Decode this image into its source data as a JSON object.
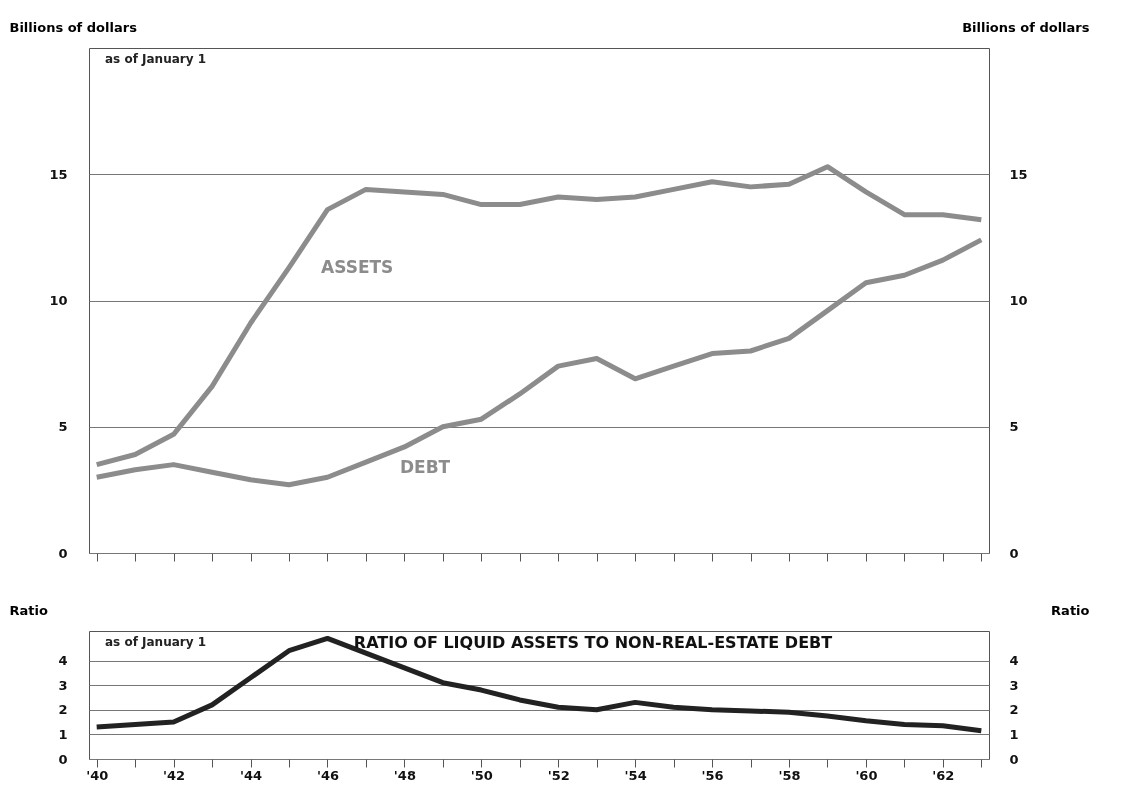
{
  "chart_data": [
    {
      "type": "line",
      "ylabel": "Billions of dollars",
      "y2label": "Billions of dollars",
      "annotations": [
        "as of January 1"
      ],
      "x": [
        1940,
        1941,
        1942,
        1943,
        1944,
        1945,
        1946,
        1947,
        1948,
        1949,
        1950,
        1951,
        1952,
        1953,
        1954,
        1955,
        1956,
        1957,
        1958,
        1959,
        1960,
        1961,
        1962,
        1963
      ],
      "series": [
        {
          "name": "ASSETS",
          "color": "#8c8c8c",
          "values": [
            3.5,
            3.9,
            4.7,
            6.6,
            9.1,
            11.3,
            13.6,
            14.4,
            14.3,
            14.2,
            13.8,
            13.8,
            14.1,
            14.0,
            14.1,
            14.4,
            14.7,
            14.5,
            14.6,
            15.3,
            14.3,
            13.4,
            13.4,
            13.2
          ]
        },
        {
          "name": "DEBT",
          "color": "#8c8c8c",
          "values": [
            3.0,
            3.3,
            3.5,
            3.2,
            2.9,
            2.7,
            3.0,
            3.6,
            4.2,
            5.0,
            5.3,
            6.3,
            7.4,
            7.7,
            6.9,
            7.4,
            7.9,
            8.0,
            8.5,
            9.6,
            10.7,
            11.0,
            11.6,
            12.4
          ]
        }
      ],
      "xlim": [
        1939.8,
        1963.2
      ],
      "xticks": [
        {
          "value": 1940,
          "label": null
        },
        {
          "value": 1941,
          "label": null
        },
        {
          "value": 1942,
          "label": null
        },
        {
          "value": 1943,
          "label": null
        },
        {
          "value": 1944,
          "label": null
        },
        {
          "value": 1945,
          "label": null
        },
        {
          "value": 1946,
          "label": null
        },
        {
          "value": 1947,
          "label": null
        },
        {
          "value": 1948,
          "label": null
        },
        {
          "value": 1949,
          "label": null
        },
        {
          "value": 1950,
          "label": null
        },
        {
          "value": 1951,
          "label": null
        },
        {
          "value": 1952,
          "label": null
        },
        {
          "value": 1953,
          "label": null
        },
        {
          "value": 1954,
          "label": null
        },
        {
          "value": 1955,
          "label": null
        },
        {
          "value": 1956,
          "label": null
        },
        {
          "value": 1957,
          "label": null
        },
        {
          "value": 1958,
          "label": null
        },
        {
          "value": 1959,
          "label": null
        },
        {
          "value": 1960,
          "label": null
        },
        {
          "value": 1961,
          "label": null
        },
        {
          "value": 1962,
          "label": null
        },
        {
          "value": 1963,
          "label": null
        }
      ],
      "ylim": [
        0,
        20
      ],
      "yticks": [
        0,
        5,
        10,
        15
      ],
      "y2lim": [
        0,
        20
      ],
      "y2ticks": [
        0,
        5,
        10,
        15
      ],
      "tick_labels": "y",
      "grid": "y",
      "legend": false,
      "line_style": "solid",
      "marker": "none"
    },
    {
      "type": "line",
      "title": "RATIO OF LIQUID ASSETS TO NON-REAL-ESTATE DEBT",
      "ylabel": "Ratio",
      "y2label": "Ratio",
      "annotations": [
        "as of January 1"
      ],
      "x": [
        1940,
        1941,
        1942,
        1943,
        1944,
        1945,
        1946,
        1947,
        1948,
        1949,
        1950,
        1951,
        1952,
        1953,
        1954,
        1955,
        1956,
        1957,
        1958,
        1959,
        1960,
        1961,
        1962,
        1963
      ],
      "series": [
        {
          "color": "#222222",
          "values": [
            1.3,
            1.4,
            1.5,
            2.2,
            3.3,
            4.4,
            4.9,
            4.3,
            3.7,
            3.1,
            2.8,
            2.4,
            2.1,
            2.0,
            2.3,
            2.1,
            2.0,
            1.95,
            1.9,
            1.75,
            1.55,
            1.4,
            1.35,
            1.15
          ]
        }
      ],
      "xlim": [
        1939.8,
        1963.2
      ],
      "xticks": [
        {
          "value": 1940,
          "label": "'40"
        },
        {
          "value": 1941,
          "label": null
        },
        {
          "value": 1942,
          "label": "'42"
        },
        {
          "value": 1943,
          "label": null
        },
        {
          "value": 1944,
          "label": "'44"
        },
        {
          "value": 1945,
          "label": null
        },
        {
          "value": 1946,
          "label": "'46"
        },
        {
          "value": 1947,
          "label": null
        },
        {
          "value": 1948,
          "label": "'48"
        },
        {
          "value": 1949,
          "label": null
        },
        {
          "value": 1950,
          "label": "'50"
        },
        {
          "value": 1951,
          "label": null
        },
        {
          "value": 1952,
          "label": "'52"
        },
        {
          "value": 1953,
          "label": null
        },
        {
          "value": 1954,
          "label": "'54"
        },
        {
          "value": 1955,
          "label": null
        },
        {
          "value": 1956,
          "label": "'56"
        },
        {
          "value": 1957,
          "label": null
        },
        {
          "value": 1958,
          "label": "'58"
        },
        {
          "value": 1959,
          "label": null
        },
        {
          "value": 1960,
          "label": "'60"
        },
        {
          "value": 1961,
          "label": null
        },
        {
          "value": 1962,
          "label": "'62"
        },
        {
          "value": 1963,
          "label": null
        }
      ],
      "ylim": [
        0,
        5.2
      ],
      "yticks": [
        0,
        1,
        2,
        3,
        4
      ],
      "y2lim": [
        0,
        5.2
      ],
      "y2ticks": [
        0,
        1,
        2,
        3,
        4
      ],
      "grid": "y",
      "legend": false,
      "line_style": "solid",
      "marker": "none"
    }
  ]
}
